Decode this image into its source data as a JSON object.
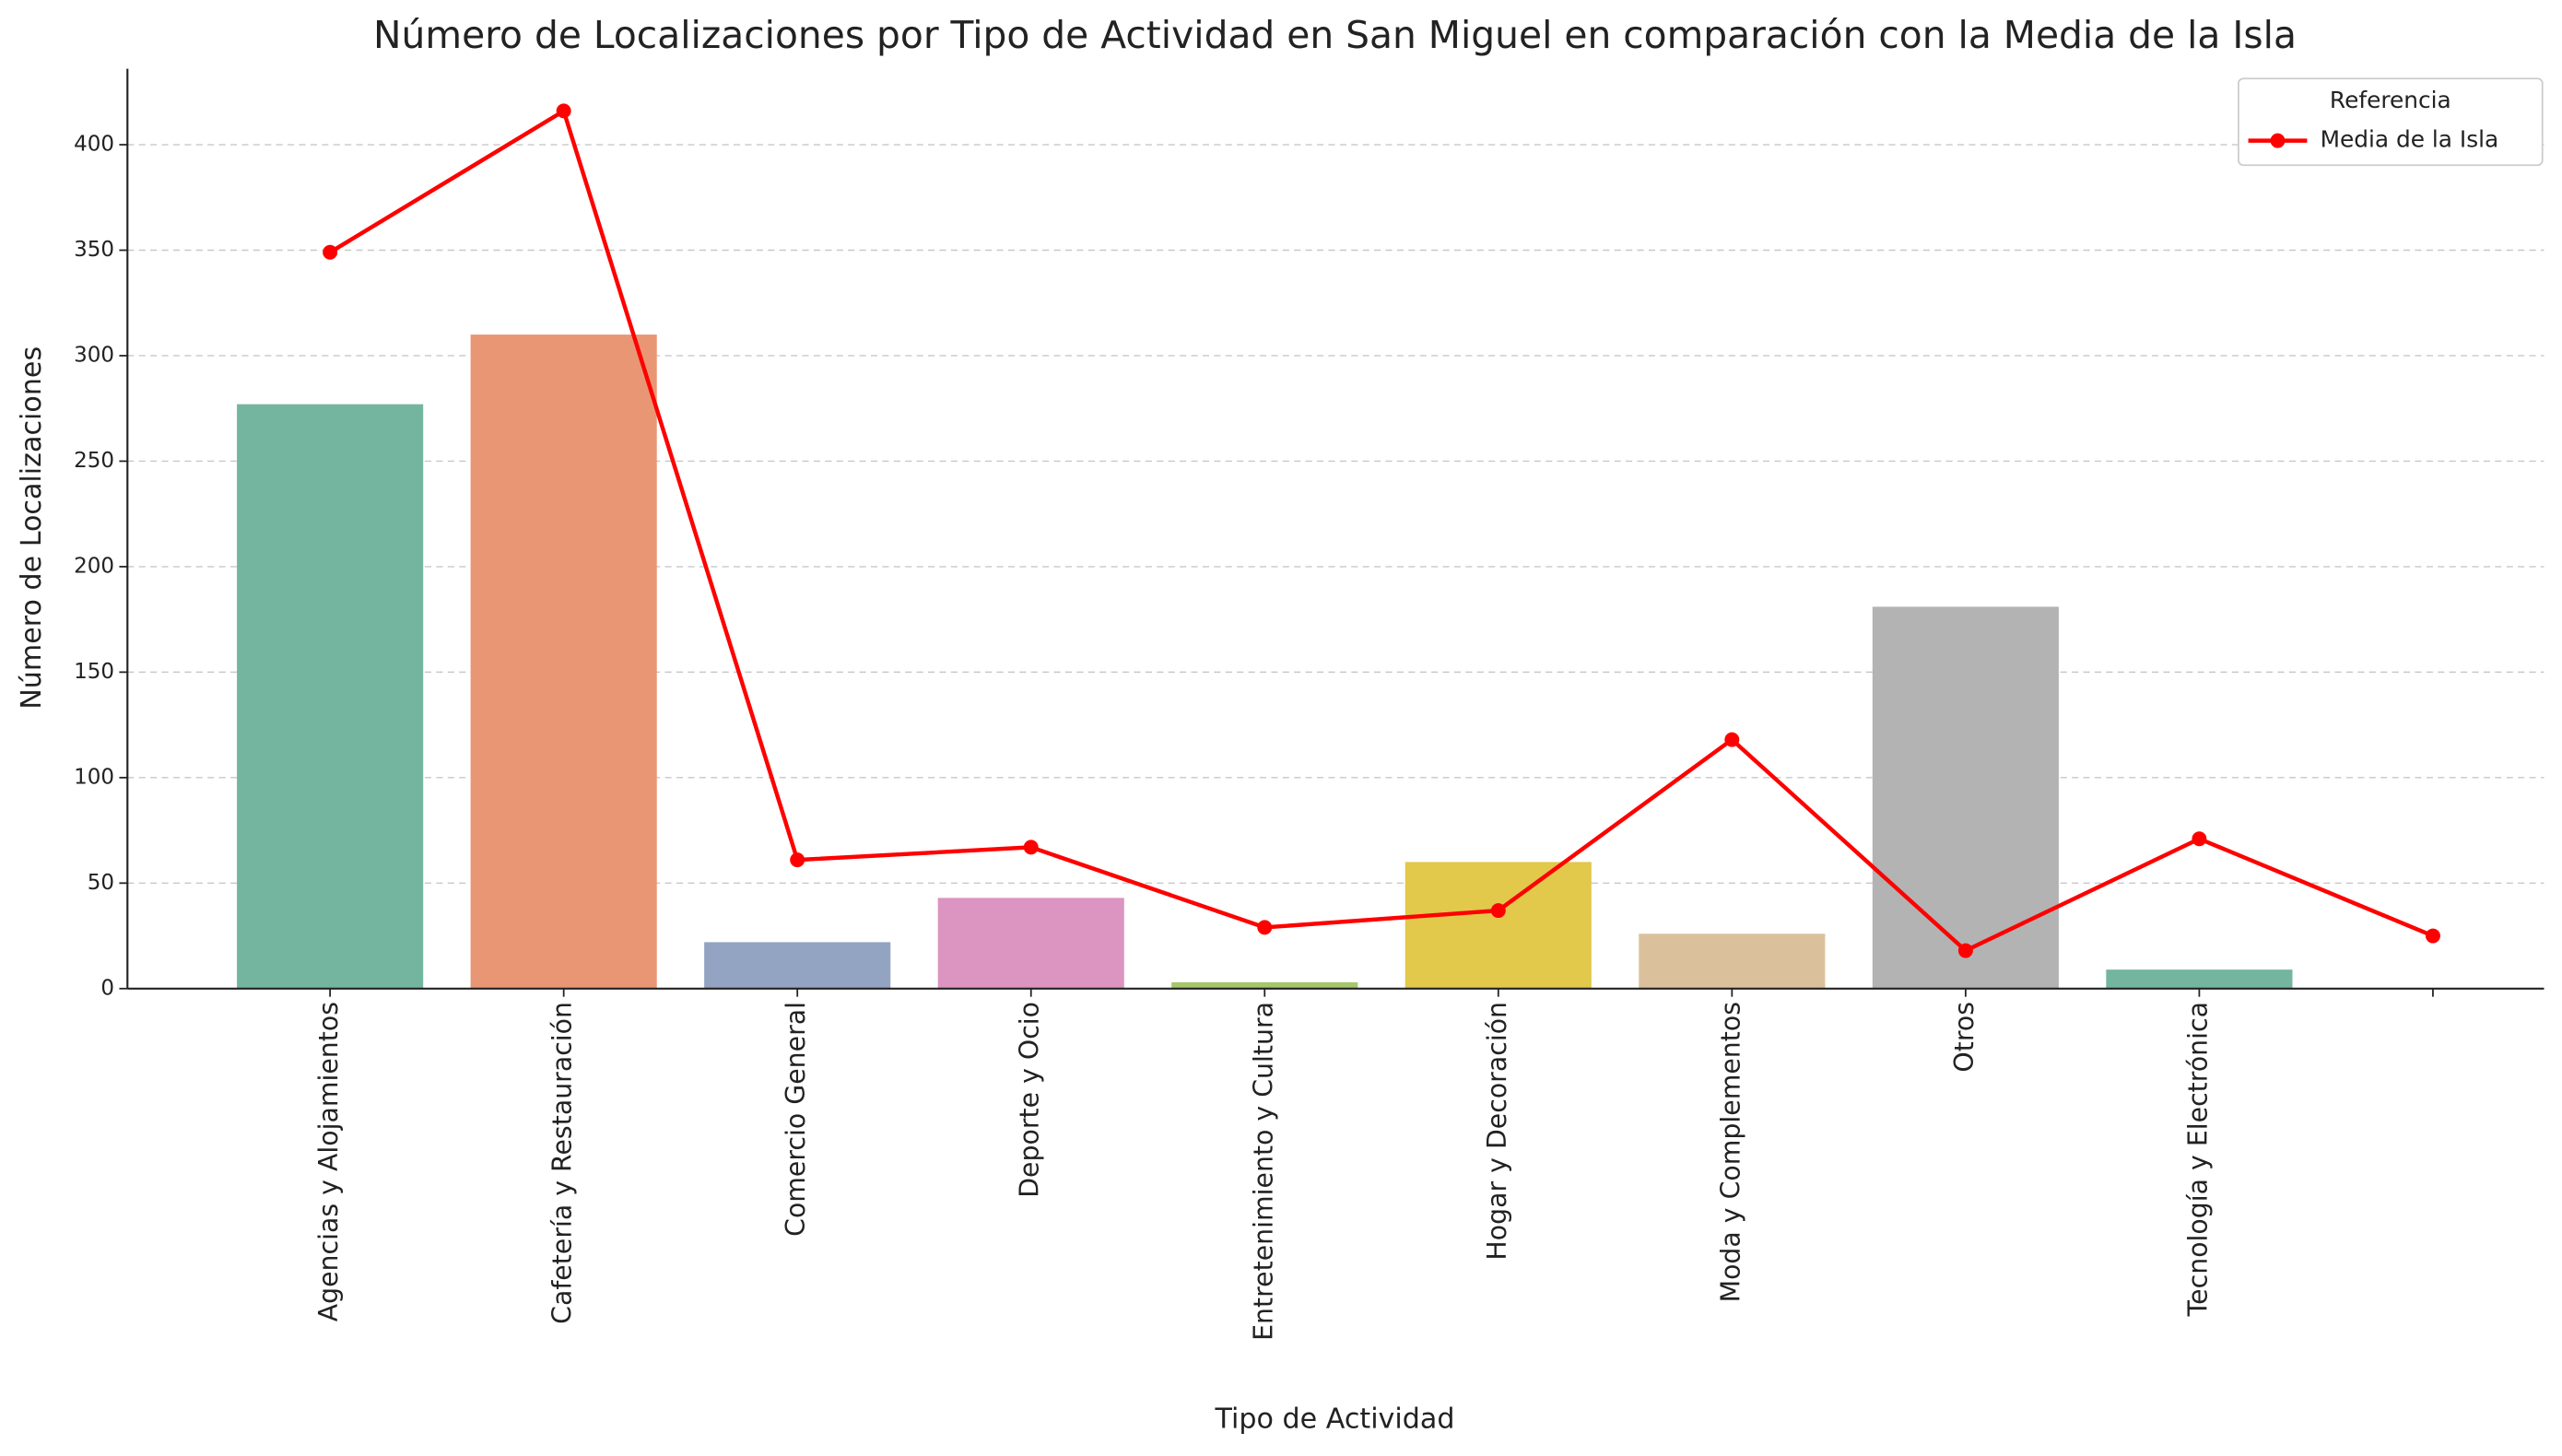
{
  "chart_data": {
    "type": "bar",
    "title": "Número de Localizaciones por Tipo de Actividad en San Miguel en comparación con la Media de la Isla",
    "xlabel": "Tipo de Actividad",
    "ylabel": "Número de Localizaciones",
    "categories": [
      "Agencias y Alojamientos",
      "Cafetería y Restauración",
      "Comercio General",
      "Deporte y Ocio",
      "Entretenimiento y Cultura",
      "Hogar y Decoración",
      "Moda y Complementos",
      "Otros",
      "Tecnología y Electrónica",
      null
    ],
    "values": [
      277,
      310,
      22,
      43,
      3,
      60,
      26,
      181,
      9,
      null
    ],
    "colors": [
      "#73b59f",
      "#e99675",
      "#93a3c2",
      "#db95c0",
      "#a6c76a",
      "#e2c84b",
      "#dbc19b",
      "#b3b3b3",
      "#73b59f",
      null
    ],
    "line": {
      "name": "Media de la Isla",
      "color": "#ff0000",
      "values": [
        349,
        416,
        61,
        67,
        29,
        37,
        118,
        18,
        71,
        25
      ]
    },
    "legend_title": "Referencia",
    "legend": "upper right",
    "ylim": [
      0,
      436
    ],
    "yticks": [
      0,
      50,
      100,
      150,
      200,
      250,
      300,
      350,
      400
    ],
    "grid": true
  }
}
